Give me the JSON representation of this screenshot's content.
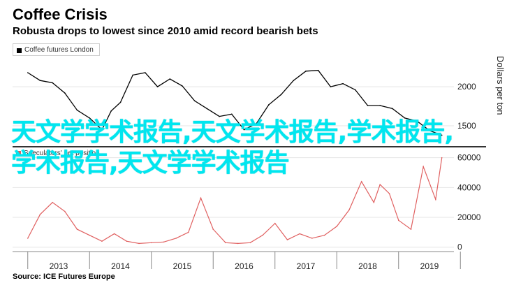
{
  "header": {
    "title": "Coffee Crisis",
    "subtitle": "Robusta drops to lowest since 2010 amid record bearish bets"
  },
  "legend": {
    "price": "Coffee futures London",
    "spec": "Speculators' net position"
  },
  "overlay_text": "天文学学术报告,天文学术报告,学术报告,学术报告,天文学学术报告",
  "source": "Source: ICE Futures Europe",
  "colors": {
    "price": "#000000",
    "spec": "#e06060",
    "overlay": "#00e6ef",
    "grid": "#e5e5e5"
  },
  "chart_data": [
    {
      "type": "line",
      "title": "Coffee futures London",
      "ylabel": "Dollars per ton",
      "ylim": [
        1250,
        2350
      ],
      "yticks": [
        "2000",
        "1500"
      ],
      "x": [
        2012.5,
        2012.7,
        2012.9,
        2013.1,
        2013.3,
        2013.5,
        2013.7,
        2013.85,
        2014.0,
        2014.2,
        2014.4,
        2014.6,
        2014.8,
        2015.0,
        2015.2,
        2015.4,
        2015.6,
        2015.8,
        2016.0,
        2016.2,
        2016.4,
        2016.6,
        2016.8,
        2017.0,
        2017.2,
        2017.4,
        2017.6,
        2017.8,
        2018.0,
        2018.2,
        2018.4,
        2018.6,
        2018.8,
        2019.0,
        2019.2
      ],
      "values": [
        2180,
        2080,
        2050,
        1920,
        1700,
        1600,
        1450,
        1690,
        1800,
        2150,
        2180,
        2000,
        2100,
        2010,
        1820,
        1720,
        1620,
        1650,
        1450,
        1530,
        1770,
        1900,
        2080,
        2200,
        2210,
        2000,
        2040,
        1960,
        1760,
        1760,
        1720,
        1600,
        1560,
        1440,
        1380
      ],
      "series": [
        {
          "name": "Coffee futures London"
        }
      ]
    },
    {
      "type": "line",
      "title": "Speculators' net position",
      "ylim": [
        -2000,
        65000
      ],
      "yticks": [
        "60000",
        "40000",
        "20000",
        "0"
      ],
      "x": [
        2012.5,
        2012.7,
        2012.9,
        2013.1,
        2013.3,
        2013.5,
        2013.7,
        2013.9,
        2014.1,
        2014.3,
        2014.5,
        2014.7,
        2014.9,
        2015.1,
        2015.3,
        2015.5,
        2015.7,
        2015.9,
        2016.1,
        2016.3,
        2016.5,
        2016.7,
        2016.9,
        2017.1,
        2017.3,
        2017.5,
        2017.7,
        2017.9,
        2018.1,
        2018.2,
        2018.35,
        2018.5,
        2018.7,
        2018.9,
        2019.1,
        2019.2
      ],
      "values": [
        6000,
        22000,
        30000,
        24000,
        12000,
        8000,
        4000,
        9000,
        4000,
        2500,
        3000,
        3500,
        6000,
        10000,
        33000,
        12000,
        3000,
        2500,
        3000,
        8000,
        16000,
        5000,
        9000,
        6000,
        8000,
        14000,
        25000,
        44000,
        30000,
        42000,
        36000,
        18000,
        12000,
        54000,
        32000,
        60000
      ],
      "series": [
        {
          "name": "Speculators' net position"
        }
      ]
    }
  ],
  "xaxis": {
    "ticks": [
      "2013",
      "2014",
      "2015",
      "2016",
      "2017",
      "2018",
      "2019"
    ]
  }
}
